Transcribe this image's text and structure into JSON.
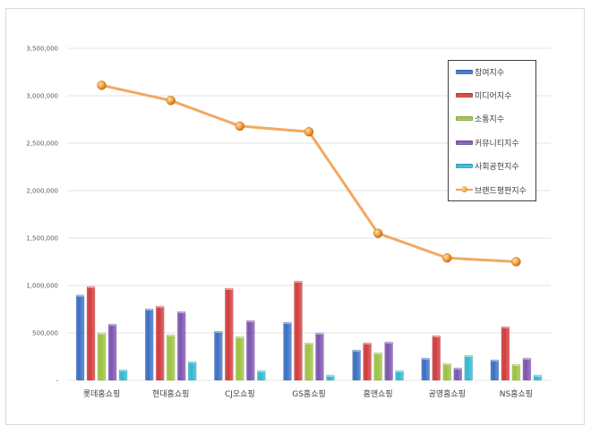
{
  "chart_data": {
    "type": "bar",
    "title": "",
    "xlabel": "",
    "ylabel": "",
    "ylim": [
      0,
      3500000
    ],
    "yticks": [
      "-",
      "500,000",
      "1,000,000",
      "1,500,000",
      "2,000,000",
      "2,500,000",
      "3,000,000",
      "3,500,000"
    ],
    "grid": true,
    "legend_position": "upper right (inside)",
    "categories": [
      "롯데홈쇼핑",
      "현대홈쇼핑",
      "CJ오쇼핑",
      "GS홈쇼핑",
      "홈앤쇼핑",
      "공영홈쇼핑",
      "NS홈쇼핑"
    ],
    "series": [
      {
        "name": "참여지수",
        "type": "bar",
        "color": "#3A6FC4",
        "values": [
          900000,
          755000,
          519000,
          613000,
          321000,
          236000,
          217000
        ]
      },
      {
        "name": "미디어지수",
        "type": "bar",
        "color": "#D23B3B",
        "values": [
          990000,
          783000,
          972000,
          1047000,
          396000,
          472000,
          566000
        ]
      },
      {
        "name": "소통지수",
        "type": "bar",
        "color": "#9BC23F",
        "values": [
          500000,
          481000,
          462000,
          396000,
          292000,
          179000,
          170000
        ]
      },
      {
        "name": "커뮤니티지수",
        "type": "bar",
        "color": "#7C53B0",
        "values": [
          594000,
          726000,
          632000,
          500000,
          406000,
          132000,
          236000
        ]
      },
      {
        "name": "사회공헌지수",
        "type": "bar",
        "color": "#2FB8D0",
        "values": [
          113000,
          198000,
          104000,
          57000,
          104000,
          264000,
          57000
        ]
      },
      {
        "name": "브랜드평판지수",
        "type": "line",
        "color": "#F0A050",
        "values": [
          3110000,
          2950000,
          2680000,
          2620000,
          1550000,
          1290000,
          1250000
        ]
      }
    ]
  },
  "legend": {
    "items": [
      {
        "label": "참여지수",
        "color": "#3A6FC4",
        "kind": "bar"
      },
      {
        "label": "미디어지수",
        "color": "#D23B3B",
        "kind": "bar"
      },
      {
        "label": "소통지수",
        "color": "#9BC23F",
        "kind": "bar"
      },
      {
        "label": "커뮤니티지수",
        "color": "#7C53B0",
        "kind": "bar"
      },
      {
        "label": "사회공헌지수",
        "color": "#2FB8D0",
        "kind": "bar"
      },
      {
        "label": "브랜드평판지수",
        "color": "#F0A050",
        "kind": "line"
      }
    ]
  }
}
